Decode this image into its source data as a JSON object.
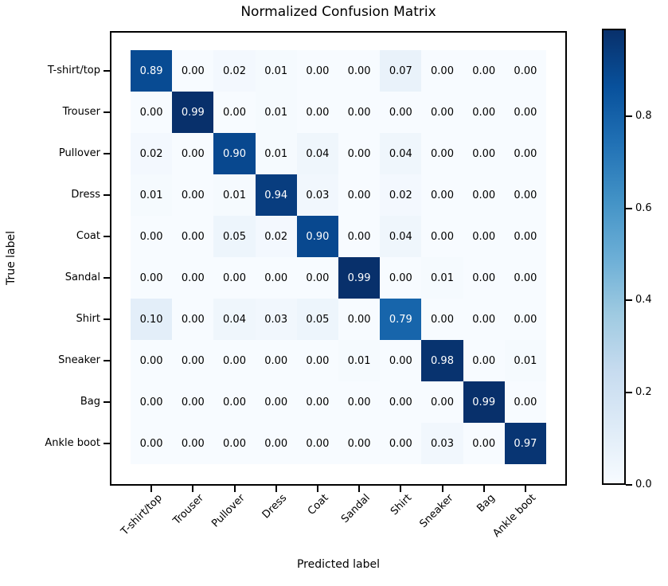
{
  "title": "Normalized Confusion Matrix",
  "chart_data": {
    "type": "heatmap",
    "title": "Normalized Confusion Matrix",
    "xlabel": "Predicted label",
    "ylabel": "True label",
    "categories": [
      "T-shirt/top",
      "Trouser",
      "Pullover",
      "Dress",
      "Coat",
      "Sandal",
      "Shirt",
      "Sneaker",
      "Bag",
      "Ankle boot"
    ],
    "matrix": [
      [
        0.89,
        0.0,
        0.02,
        0.01,
        0.0,
        0.0,
        0.07,
        0.0,
        0.0,
        0.0
      ],
      [
        0.0,
        0.99,
        0.0,
        0.01,
        0.0,
        0.0,
        0.0,
        0.0,
        0.0,
        0.0
      ],
      [
        0.02,
        0.0,
        0.9,
        0.01,
        0.04,
        0.0,
        0.04,
        0.0,
        0.0,
        0.0
      ],
      [
        0.01,
        0.0,
        0.01,
        0.94,
        0.03,
        0.0,
        0.02,
        0.0,
        0.0,
        0.0
      ],
      [
        0.0,
        0.0,
        0.05,
        0.02,
        0.9,
        0.0,
        0.04,
        0.0,
        0.0,
        0.0
      ],
      [
        0.0,
        0.0,
        0.0,
        0.0,
        0.0,
        0.99,
        0.0,
        0.01,
        0.0,
        0.0
      ],
      [
        0.1,
        0.0,
        0.04,
        0.03,
        0.05,
        0.0,
        0.79,
        0.0,
        0.0,
        0.0
      ],
      [
        0.0,
        0.0,
        0.0,
        0.0,
        0.0,
        0.01,
        0.0,
        0.98,
        0.0,
        0.01
      ],
      [
        0.0,
        0.0,
        0.0,
        0.0,
        0.0,
        0.0,
        0.0,
        0.0,
        0.99,
        0.0
      ],
      [
        0.0,
        0.0,
        0.0,
        0.0,
        0.0,
        0.0,
        0.0,
        0.03,
        0.0,
        0.97
      ]
    ],
    "value_decimals": 2,
    "vmin": 0.0,
    "vmax": 0.99,
    "colormap": "Blues",
    "colorbar_ticks": [
      "0.0",
      "0.2",
      "0.4",
      "0.6",
      "0.8"
    ],
    "colorbar_tick_values": [
      0.0,
      0.2,
      0.4,
      0.6,
      0.8
    ],
    "colorbar_position": "right",
    "grid": false,
    "x_tick_rotation_deg": 45
  },
  "colors": {
    "background": "#ffffff",
    "spine": "#000000",
    "text_dark": "#000000",
    "text_light": "#ffffff",
    "cmap_anchors": [
      "#f7fbff",
      "#deebf7",
      "#c6dbef",
      "#9ecae1",
      "#6baed6",
      "#4292c6",
      "#2171b5",
      "#08519c",
      "#08306b"
    ]
  }
}
